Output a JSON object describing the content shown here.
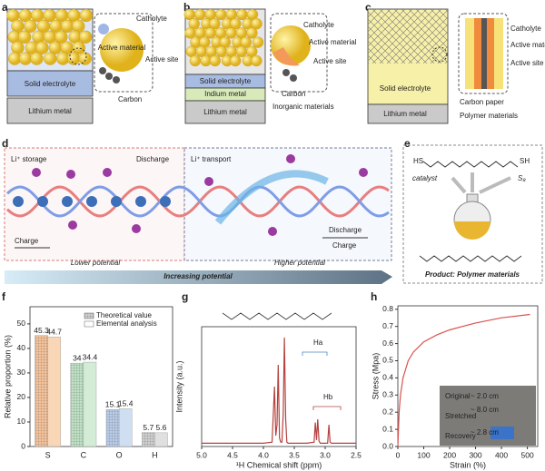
{
  "panels": {
    "a": {
      "letter": "a",
      "labels": [
        "Catholyte",
        "Active material",
        "Active site",
        "Carbon",
        "Solid electrolyte",
        "Lithium metal"
      ]
    },
    "b": {
      "letter": "b",
      "labels": [
        "Catholyte",
        "Active material",
        "Active site",
        "Carbon",
        "Inorganic materials",
        "Solid electrolyte",
        "Indium metal",
        "Lithium metal"
      ]
    },
    "c": {
      "letter": "c",
      "labels": [
        "Catholyte",
        "Active material",
        "Active site",
        "Carbon paper",
        "Polymer materials",
        "Solid electrolyte",
        "Lithium metal"
      ]
    },
    "d": {
      "letter": "d",
      "labels": [
        "Li⁺ storage",
        "Li⁺ transport",
        "Discharge",
        "Charge",
        "Discharge",
        "Charge",
        "Lower potential",
        "Increasing potential",
        "Higher potential"
      ]
    },
    "e": {
      "letter": "e",
      "labels": [
        "HS",
        "SH",
        "catalyst",
        "S₈",
        "Product: Polymer materials"
      ]
    },
    "f": {
      "letter": "f"
    },
    "g": {
      "letter": "g"
    },
    "h": {
      "letter": "h"
    }
  },
  "chart_data": [
    {
      "type": "bar",
      "y_label": "Relative proportion (%)",
      "categories": [
        "S",
        "C",
        "O",
        "H"
      ],
      "series": [
        {
          "name": "Theoretical value",
          "colors": [
            "#f6c39a",
            "#bfe3c4",
            "#b9cdea",
            "#cfcfcf"
          ],
          "values": [
            45.3,
            34,
            15.1,
            5.7
          ]
        },
        {
          "name": "Elemental analysis",
          "colors": [
            "#f9d6b6",
            "#d3ecd6",
            "#d0def2",
            "#e0e0e0"
          ],
          "values": [
            44.7,
            34.4,
            15.4,
            5.6
          ]
        }
      ],
      "ylim": [
        0,
        57
      ],
      "yticks": [
        0,
        10,
        20,
        30,
        40,
        50
      ]
    },
    {
      "type": "line",
      "x_label": "¹H Chemical shift (ppm)",
      "y_label": "Intensity (a.u.)",
      "x": [
        5.0,
        4.0,
        3.86,
        3.84,
        3.82,
        3.8,
        3.78,
        3.76,
        3.74,
        3.72,
        3.7,
        3.68,
        3.66,
        3.64,
        3.62,
        3.6,
        3.3,
        3.18,
        3.16,
        3.14,
        3.12,
        3.1,
        3.08,
        3.06,
        2.96,
        2.94,
        2.92,
        2.9,
        2.5
      ],
      "series": [
        {
          "color": "#b5423f",
          "values": [
            3,
            3,
            4,
            30,
            55,
            10,
            20,
            75,
            8,
            4,
            4,
            30,
            100,
            25,
            4,
            3,
            3,
            4,
            22,
            6,
            25,
            5,
            3,
            3,
            3,
            20,
            4,
            3,
            3
          ]
        }
      ],
      "xlim": [
        5.0,
        2.5
      ],
      "ylim": [
        0,
        110
      ],
      "xticks": [
        {
          "value": 5.0,
          "label": "5.0"
        },
        4.5,
        {
          "value": 4.0,
          "label": "4.0"
        },
        3.5,
        {
          "value": 3.0,
          "label": "3.0"
        },
        2.5
      ],
      "annotations": [
        "Ha",
        "Hb"
      ]
    },
    {
      "type": "line",
      "x_label": "Strain (%)",
      "y_label": "Stress (Mpa)",
      "x": [
        0,
        5,
        10,
        20,
        40,
        60,
        100,
        150,
        200,
        300,
        400,
        510
      ],
      "series": [
        {
          "color": "#d9534f",
          "values": [
            0,
            0.2,
            0.3,
            0.4,
            0.5,
            0.55,
            0.61,
            0.65,
            0.68,
            0.72,
            0.75,
            0.77
          ]
        }
      ],
      "xlim": [
        0,
        540
      ],
      "xticks": [
        0,
        100,
        200,
        300,
        400,
        500
      ],
      "ylim": [
        0,
        0.82
      ],
      "yticks": [
        {
          "value": 0,
          "label": "0.0"
        },
        0.1,
        0.2,
        0.3,
        0.4,
        0.5,
        0.6,
        0.7,
        0.8
      ],
      "annotations": [
        "Original",
        "~ 2.0 cm",
        "Stretched",
        "~ 8.0 cm",
        "Recovery",
        "~ 2.8 cm"
      ]
    }
  ]
}
